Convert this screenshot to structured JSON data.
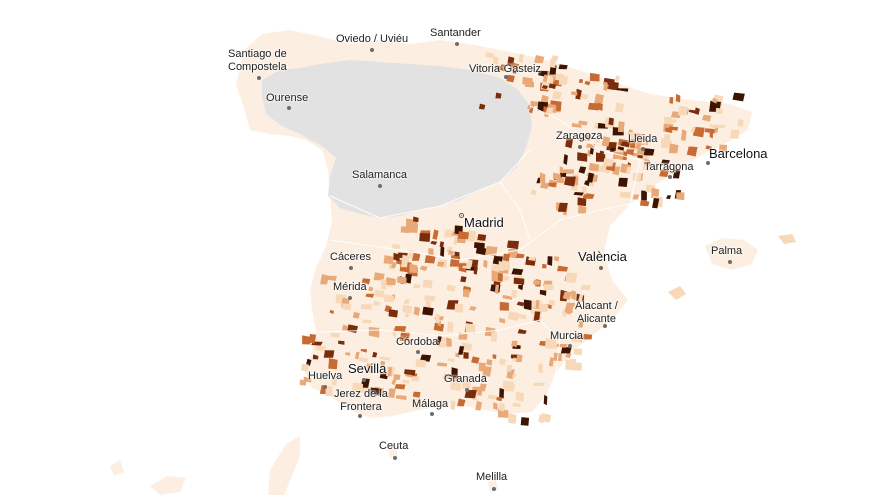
{
  "map": {
    "colors": {
      "nodata": "#e2e2e2",
      "base": "#fcefe2",
      "light": "#f7d8b8",
      "mid": "#e9a877",
      "strong": "#c76a34",
      "dark": "#7a2d0c",
      "darkest": "#3d1302",
      "border": "#ffffff"
    },
    "cities": [
      {
        "id": "santiago",
        "lines": [
          "Santiago de",
          "Compostela"
        ],
        "big": false
      },
      {
        "id": "oviedo",
        "lines": [
          "Oviedo / Uviéu"
        ],
        "big": false
      },
      {
        "id": "santander",
        "lines": [
          "Santander"
        ],
        "big": false
      },
      {
        "id": "vitoria",
        "lines": [
          "Vitoria-Gasteiz"
        ],
        "big": false
      },
      {
        "id": "ourense",
        "lines": [
          "Ourense"
        ],
        "big": false
      },
      {
        "id": "zaragoza",
        "lines": [
          "Zaragoza"
        ],
        "big": false
      },
      {
        "id": "lleida",
        "lines": [
          "Lleida"
        ],
        "big": false
      },
      {
        "id": "barcelona",
        "lines": [
          "Barcelona"
        ],
        "big": true
      },
      {
        "id": "tarragona",
        "lines": [
          "Tarragona"
        ],
        "big": false
      },
      {
        "id": "salamanca",
        "lines": [
          "Salamanca"
        ],
        "big": false
      },
      {
        "id": "madrid",
        "lines": [
          "Madrid"
        ],
        "big": true
      },
      {
        "id": "valencia",
        "lines": [
          "València"
        ],
        "big": true
      },
      {
        "id": "palma",
        "lines": [
          "Palma"
        ],
        "big": false
      },
      {
        "id": "caceres",
        "lines": [
          "Cáceres"
        ],
        "big": false
      },
      {
        "id": "merida",
        "lines": [
          "Mérida"
        ],
        "big": false
      },
      {
        "id": "alacant",
        "lines": [
          "Alacant /",
          "Alicante"
        ],
        "big": false
      },
      {
        "id": "murcia",
        "lines": [
          "Murcia"
        ],
        "big": false
      },
      {
        "id": "cordoba",
        "lines": [
          "Córdoba"
        ],
        "big": false
      },
      {
        "id": "sevilla",
        "lines": [
          "Sevilla"
        ],
        "big": true
      },
      {
        "id": "huelva",
        "lines": [
          "Huelva"
        ],
        "big": false
      },
      {
        "id": "granada",
        "lines": [
          "Granada"
        ],
        "big": false
      },
      {
        "id": "jerez",
        "lines": [
          "Jerez de la",
          "Frontera"
        ],
        "big": false
      },
      {
        "id": "malaga",
        "lines": [
          "Málaga"
        ],
        "big": false
      },
      {
        "id": "ceuta",
        "lines": [
          "Ceuta"
        ],
        "big": false
      },
      {
        "id": "melilla",
        "lines": [
          "Melilla"
        ],
        "big": false
      }
    ]
  }
}
